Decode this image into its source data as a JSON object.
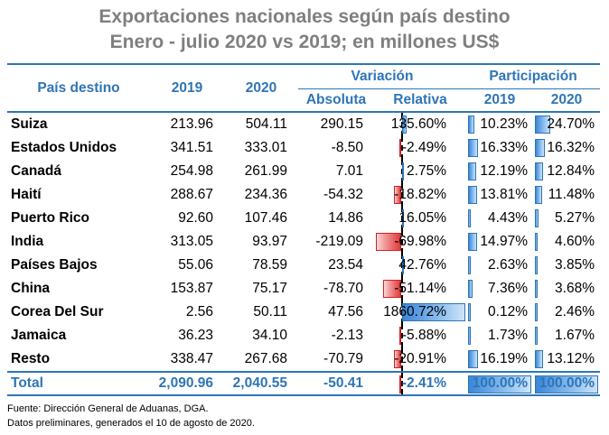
{
  "title_line1": "Exportaciones nacionales según país destino",
  "title_line2": "Enero - julio 2020 vs 2019; en millones US$",
  "headers": {
    "country": "País destino",
    "y2019": "2019",
    "y2020": "2020",
    "variation": "Variación",
    "absolute": "Absoluta",
    "relative": "Relativa",
    "share": "Participación",
    "share2019": "2019",
    "share2020": "2020"
  },
  "rows": [
    {
      "name": "Suiza",
      "v2019": "213.96",
      "v2020": "504.11",
      "abs": "290.15",
      "rel": "135.60%",
      "rel_pct": 135.6,
      "s2019": "10.23%",
      "s2019_pct": 10.23,
      "s2020": "24.70%",
      "s2020_pct": 24.7
    },
    {
      "name": "Estados Unidos",
      "v2019": "341.51",
      "v2020": "333.01",
      "abs": "-8.50",
      "rel": "-2.49%",
      "rel_pct": -2.49,
      "s2019": "16.33%",
      "s2019_pct": 16.33,
      "s2020": "16.32%",
      "s2020_pct": 16.32
    },
    {
      "name": "Canadá",
      "v2019": "254.98",
      "v2020": "261.99",
      "abs": "7.01",
      "rel": "2.75%",
      "rel_pct": 2.75,
      "s2019": "12.19%",
      "s2019_pct": 12.19,
      "s2020": "12.84%",
      "s2020_pct": 12.84
    },
    {
      "name": "Haití",
      "v2019": "288.67",
      "v2020": "234.36",
      "abs": "-54.32",
      "rel": "-18.82%",
      "rel_pct": -18.82,
      "s2019": "13.81%",
      "s2019_pct": 13.81,
      "s2020": "11.48%",
      "s2020_pct": 11.48
    },
    {
      "name": "Puerto Rico",
      "v2019": "92.60",
      "v2020": "107.46",
      "abs": "14.86",
      "rel": "16.05%",
      "rel_pct": 16.05,
      "s2019": "4.43%",
      "s2019_pct": 4.43,
      "s2020": "5.27%",
      "s2020_pct": 5.27
    },
    {
      "name": "India",
      "v2019": "313.05",
      "v2020": "93.97",
      "abs": "-219.09",
      "rel": "-69.98%",
      "rel_pct": -69.98,
      "s2019": "14.97%",
      "s2019_pct": 14.97,
      "s2020": "4.60%",
      "s2020_pct": 4.6
    },
    {
      "name": "Países Bajos",
      "v2019": "55.06",
      "v2020": "78.59",
      "abs": "23.54",
      "rel": "42.76%",
      "rel_pct": 42.76,
      "s2019": "2.63%",
      "s2019_pct": 2.63,
      "s2020": "3.85%",
      "s2020_pct": 3.85
    },
    {
      "name": "China",
      "v2019": "153.87",
      "v2020": "75.17",
      "abs": "-78.70",
      "rel": "-51.14%",
      "rel_pct": -51.14,
      "s2019": "7.36%",
      "s2019_pct": 7.36,
      "s2020": "3.68%",
      "s2020_pct": 3.68
    },
    {
      "name": "Corea Del Sur",
      "v2019": "2.56",
      "v2020": "50.11",
      "abs": "47.56",
      "rel": "1860.72%",
      "rel_pct": 1860.72,
      "s2019": "0.12%",
      "s2019_pct": 0.12,
      "s2020": "2.46%",
      "s2020_pct": 2.46
    },
    {
      "name": "Jamaica",
      "v2019": "36.23",
      "v2020": "34.10",
      "abs": "-2.13",
      "rel": "-5.88%",
      "rel_pct": -5.88,
      "s2019": "1.73%",
      "s2019_pct": 1.73,
      "s2020": "1.67%",
      "s2020_pct": 1.67
    },
    {
      "name": "Resto",
      "v2019": "338.47",
      "v2020": "267.68",
      "abs": "-70.79",
      "rel": "-20.91%",
      "rel_pct": -20.91,
      "s2019": "16.19%",
      "s2019_pct": 16.19,
      "s2020": "13.12%",
      "s2020_pct": 13.12
    }
  ],
  "total": {
    "name": "Total",
    "v2019": "2,090.96",
    "v2020": "2,040.55",
    "abs": "-50.41",
    "rel": "-2.41%",
    "rel_pct": -2.41,
    "s2019": "100.00%",
    "s2019_pct": 100,
    "s2020": "100.00%",
    "s2020_pct": 100
  },
  "footnote1": "Fuente: Dirección General de Aduanas, DGA.",
  "footnote2": "Datos preliminares, generados el 10 de agosto de 2020.",
  "colors": {
    "accent": "#2e75b6",
    "title": "#7f7f7f",
    "positive_bar": "#3a86d8",
    "negative_bar": "#e03a3a"
  }
}
